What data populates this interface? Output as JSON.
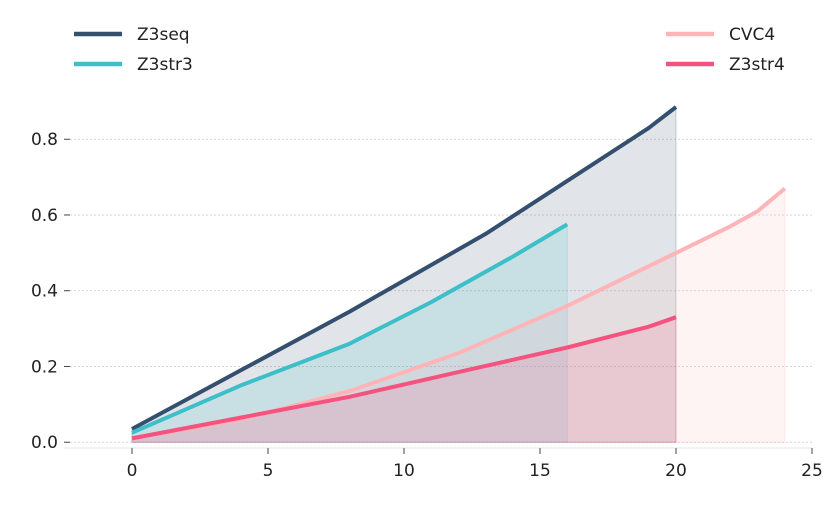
{
  "chart_data": {
    "type": "area",
    "title": "",
    "xlabel": "",
    "ylabel": "",
    "xlim": [
      -2.5,
      25
    ],
    "ylim": [
      -0.01,
      0.93
    ],
    "xticks": [
      0,
      5,
      10,
      15,
      20,
      25
    ],
    "yticks": [
      0.0,
      0.2,
      0.4,
      0.6,
      0.8
    ],
    "xtick_labels": [
      "0",
      "5",
      "10",
      "15",
      "20",
      "25"
    ],
    "ytick_labels": [
      "0.0",
      "0.2",
      "0.4",
      "0.6",
      "0.8"
    ],
    "grid": "horizontal-dotted",
    "series": [
      {
        "name": "Z3seq",
        "color": "#354f6e",
        "x": [
          0,
          4,
          8,
          13,
          16,
          19,
          20
        ],
        "y": [
          0.035,
          0.19,
          0.345,
          0.55,
          0.69,
          0.83,
          0.885
        ]
      },
      {
        "name": "Z3str3",
        "color": "#3cbfc8",
        "x": [
          0,
          4,
          8,
          11,
          14,
          16
        ],
        "y": [
          0.025,
          0.15,
          0.26,
          0.37,
          0.49,
          0.575
        ]
      },
      {
        "name": "CVC4",
        "color": "#ffb5b8",
        "x": [
          0,
          4,
          8,
          12,
          16,
          20,
          22,
          23,
          24
        ],
        "y": [
          0.01,
          0.06,
          0.135,
          0.235,
          0.36,
          0.5,
          0.57,
          0.61,
          0.67
        ]
      },
      {
        "name": "Z3str4",
        "color": "#f5527f",
        "x": [
          0,
          4,
          8,
          12,
          16,
          19,
          20
        ],
        "y": [
          0.01,
          0.065,
          0.12,
          0.185,
          0.25,
          0.305,
          0.33
        ]
      }
    ],
    "legend": {
      "left": [
        "Z3seq",
        "Z3str3"
      ],
      "right": [
        "CVC4",
        "Z3str4"
      ]
    }
  }
}
